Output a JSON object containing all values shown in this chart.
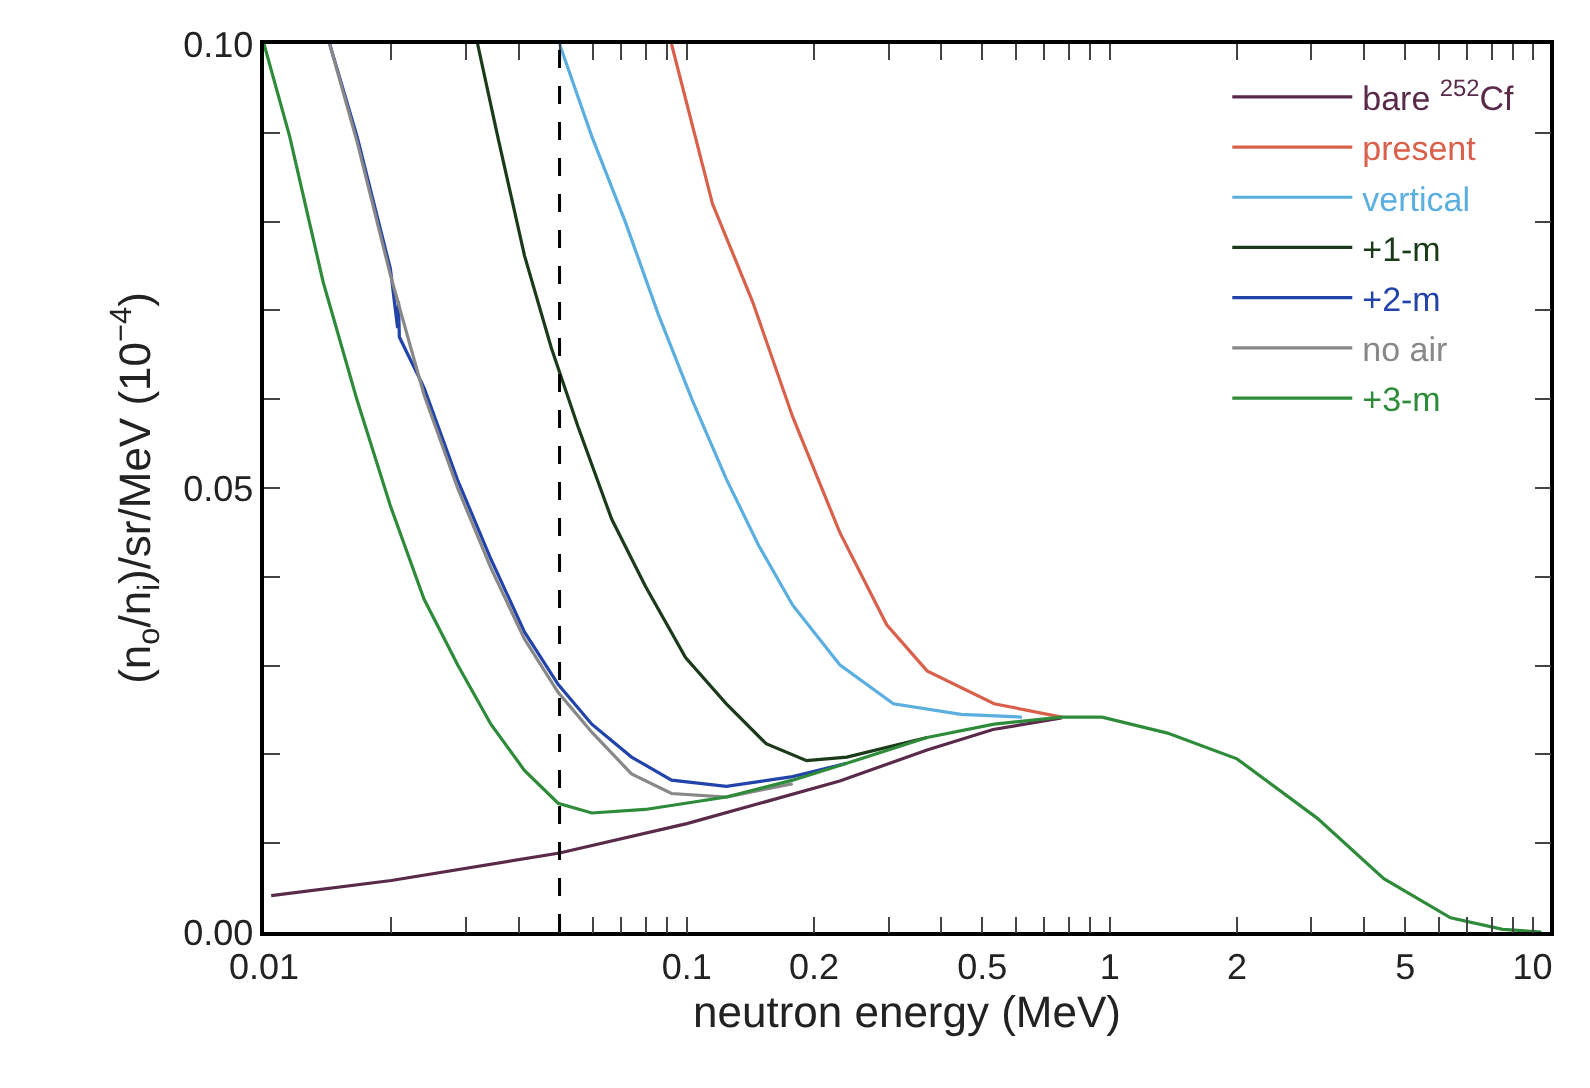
{
  "chart_data": {
    "type": "line",
    "xlabel": "neutron energy (MeV)",
    "ylabel": "(n$_{o}$/n$_{i}$)/sr/MeV (10$^{−4}$)",
    "log": "x",
    "grid": false,
    "legend": "top right",
    "marker": "none",
    "line_style": "solid",
    "xlim": [
      0.01,
      11
    ],
    "ylim": [
      0,
      0.1
    ],
    "xticks": [
      0.01,
      {
        "value": 0.02,
        "label": null
      },
      {
        "value": 0.03,
        "label": null
      },
      {
        "value": 0.04,
        "label": null
      },
      {
        "value": 0.05,
        "label": null
      },
      {
        "value": 0.06,
        "label": null
      },
      {
        "value": 0.07,
        "label": null
      },
      {
        "value": 0.08,
        "label": null
      },
      {
        "value": 0.09,
        "label": null
      },
      0.1,
      0.2,
      {
        "value": 0.3,
        "label": null
      },
      {
        "value": 0.4,
        "label": null
      },
      0.5,
      {
        "value": 0.6,
        "label": null
      },
      {
        "value": 0.7,
        "label": null
      },
      {
        "value": 0.8,
        "label": null
      },
      {
        "value": 0.9,
        "label": null
      },
      1,
      2,
      {
        "value": 3,
        "label": null
      },
      {
        "value": 4,
        "label": null
      },
      5,
      {
        "value": 6,
        "label": null
      },
      {
        "value": 7,
        "label": null
      },
      {
        "value": 8,
        "label": null
      },
      {
        "value": 9,
        "label": null
      },
      10
    ],
    "yticks": [
      {
        "value": 0,
        "label": "0.00"
      },
      {
        "value": 0.01,
        "label": null
      },
      {
        "value": 0.02,
        "label": null
      },
      {
        "value": 0.03,
        "label": null
      },
      {
        "value": 0.04,
        "label": null
      },
      {
        "value": 0.05,
        "label": "0.05"
      },
      {
        "value": 0.06,
        "label": null
      },
      {
        "value": 0.07,
        "label": null
      },
      {
        "value": 0.08,
        "label": null
      },
      {
        "value": 0.09,
        "label": null
      },
      {
        "value": 0.1,
        "label": "0.10"
      }
    ],
    "ref_lines": [
      {
        "axis": "x",
        "value": 0.05,
        "label": null,
        "color": "#000000",
        "line_style": "dashed"
      }
    ],
    "series": [
      {
        "name": "bare $^{252}$Cf",
        "color": "#5a2a4a",
        "x": [
          0.0104,
          0.02,
          0.05,
          0.1,
          0.23,
          0.37,
          0.53,
          0.77
        ],
        "values": [
          0.0041,
          0.0058,
          0.0089,
          0.0122,
          0.017,
          0.0205,
          0.0228,
          0.0241
        ]
      },
      {
        "name": "present",
        "color": "#d9604a",
        "x": [
          0.092,
          0.115,
          0.143,
          0.178,
          0.23,
          0.297,
          0.37,
          0.533,
          0.77
        ],
        "values": [
          0.1,
          0.082,
          0.071,
          0.058,
          0.045,
          0.0346,
          0.0294,
          0.0257,
          0.0242
        ]
      },
      {
        "name": "vertical",
        "color": "#5aaee0",
        "x": [
          0.05,
          0.0596,
          0.0715,
          0.0857,
          0.103,
          0.124,
          0.148,
          0.178,
          0.23,
          0.308,
          0.445,
          0.62
        ],
        "values": [
          0.1,
          0.0896,
          0.08,
          0.0695,
          0.0599,
          0.051,
          0.0435,
          0.0368,
          0.0301,
          0.0257,
          0.0245,
          0.0242
        ]
      },
      {
        "name": "+1-m",
        "color": "#1a3a1a",
        "x": [
          0.032,
          0.0357,
          0.0413,
          0.0478,
          0.0553,
          0.0664,
          0.0797,
          0.0993,
          0.124,
          0.154,
          0.192,
          0.239,
          0.37
        ],
        "values": [
          0.1,
          0.0896,
          0.0762,
          0.0658,
          0.0569,
          0.0465,
          0.039,
          0.0309,
          0.0257,
          0.0212,
          0.0193,
          0.0197,
          0.0219
        ]
      },
      {
        "name": "+2-m",
        "color": "#2244aa",
        "x": [
          0.0143,
          0.0166,
          0.0199,
          0.0207,
          0.0208,
          0.0209,
          0.0239,
          0.0287,
          0.0344,
          0.0413,
          0.0496,
          0.0596,
          0.074,
          0.092,
          0.124,
          0.178,
          0.239
        ],
        "values": [
          0.1,
          0.0896,
          0.0747,
          0.068,
          0.071,
          0.067,
          0.0613,
          0.0509,
          0.042,
          0.0338,
          0.0279,
          0.0234,
          0.0197,
          0.0171,
          0.0164,
          0.0175,
          0.019
        ]
      },
      {
        "name": "no air",
        "color": "#888888",
        "x": [
          0.0143,
          0.0166,
          0.0199,
          0.0239,
          0.0287,
          0.0344,
          0.0413,
          0.0496,
          0.0596,
          0.074,
          0.092,
          0.124,
          0.178
        ],
        "values": [
          0.1,
          0.089,
          0.074,
          0.0605,
          0.05,
          0.041,
          0.033,
          0.027,
          0.0225,
          0.0178,
          0.0156,
          0.0152,
          0.0167
        ]
      },
      {
        "name": "+3-m",
        "color": "#2e8b3a",
        "x": [
          0.01,
          0.0115,
          0.0138,
          0.0166,
          0.0199,
          0.0239,
          0.0287,
          0.0344,
          0.0413,
          0.0496,
          0.0596,
          0.0797,
          0.124,
          0.178,
          0.239,
          0.37,
          0.533,
          0.77,
          0.96,
          1.37,
          2.0,
          3.1,
          4.45,
          6.4,
          8.5,
          10.5
        ],
        "values": [
          0.1,
          0.0896,
          0.0732,
          0.0599,
          0.048,
          0.0375,
          0.0301,
          0.0234,
          0.0182,
          0.0145,
          0.0134,
          0.0138,
          0.0152,
          0.0171,
          0.019,
          0.0219,
          0.0234,
          0.0242,
          0.0242,
          0.0224,
          0.0195,
          0.0128,
          0.006,
          0.0016,
          0.0003,
          0
        ]
      }
    ]
  }
}
